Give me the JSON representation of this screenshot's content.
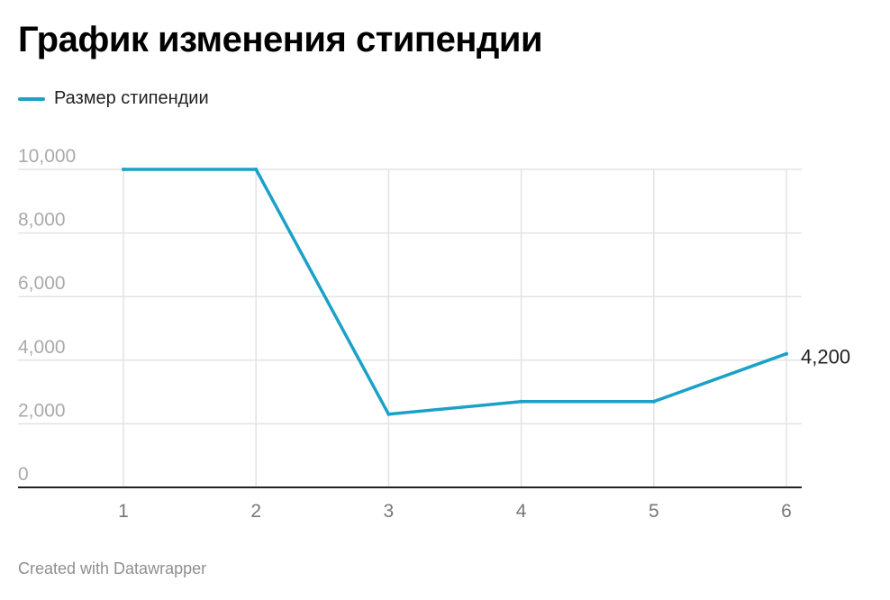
{
  "colors": {
    "line": "#1ba1c9",
    "grid": "#e3e3e3",
    "axis": "#222222",
    "tick": "#aaaaaa",
    "xtick": "#777777"
  },
  "chart_data": {
    "type": "line",
    "title": "График изменения стипендии",
    "xlabel": "",
    "ylabel": "",
    "x": [
      1,
      2,
      3,
      4,
      5,
      6
    ],
    "xticks": [
      "1",
      "2",
      "3",
      "4",
      "5",
      "6"
    ],
    "yticks": [
      0,
      2000,
      4000,
      6000,
      8000,
      10000
    ],
    "ytick_labels": [
      "0",
      "2,000",
      "4,000",
      "6,000",
      "8,000",
      "10,000"
    ],
    "ylim": [
      0,
      10000
    ],
    "grid": true,
    "legend_position": "top-left",
    "series": [
      {
        "name": "Размер стипендии",
        "values": [
          10000,
          10000,
          2300,
          2700,
          2700,
          4200
        ]
      }
    ],
    "end_label": "4,200"
  },
  "footer": "Created with Datawrapper"
}
